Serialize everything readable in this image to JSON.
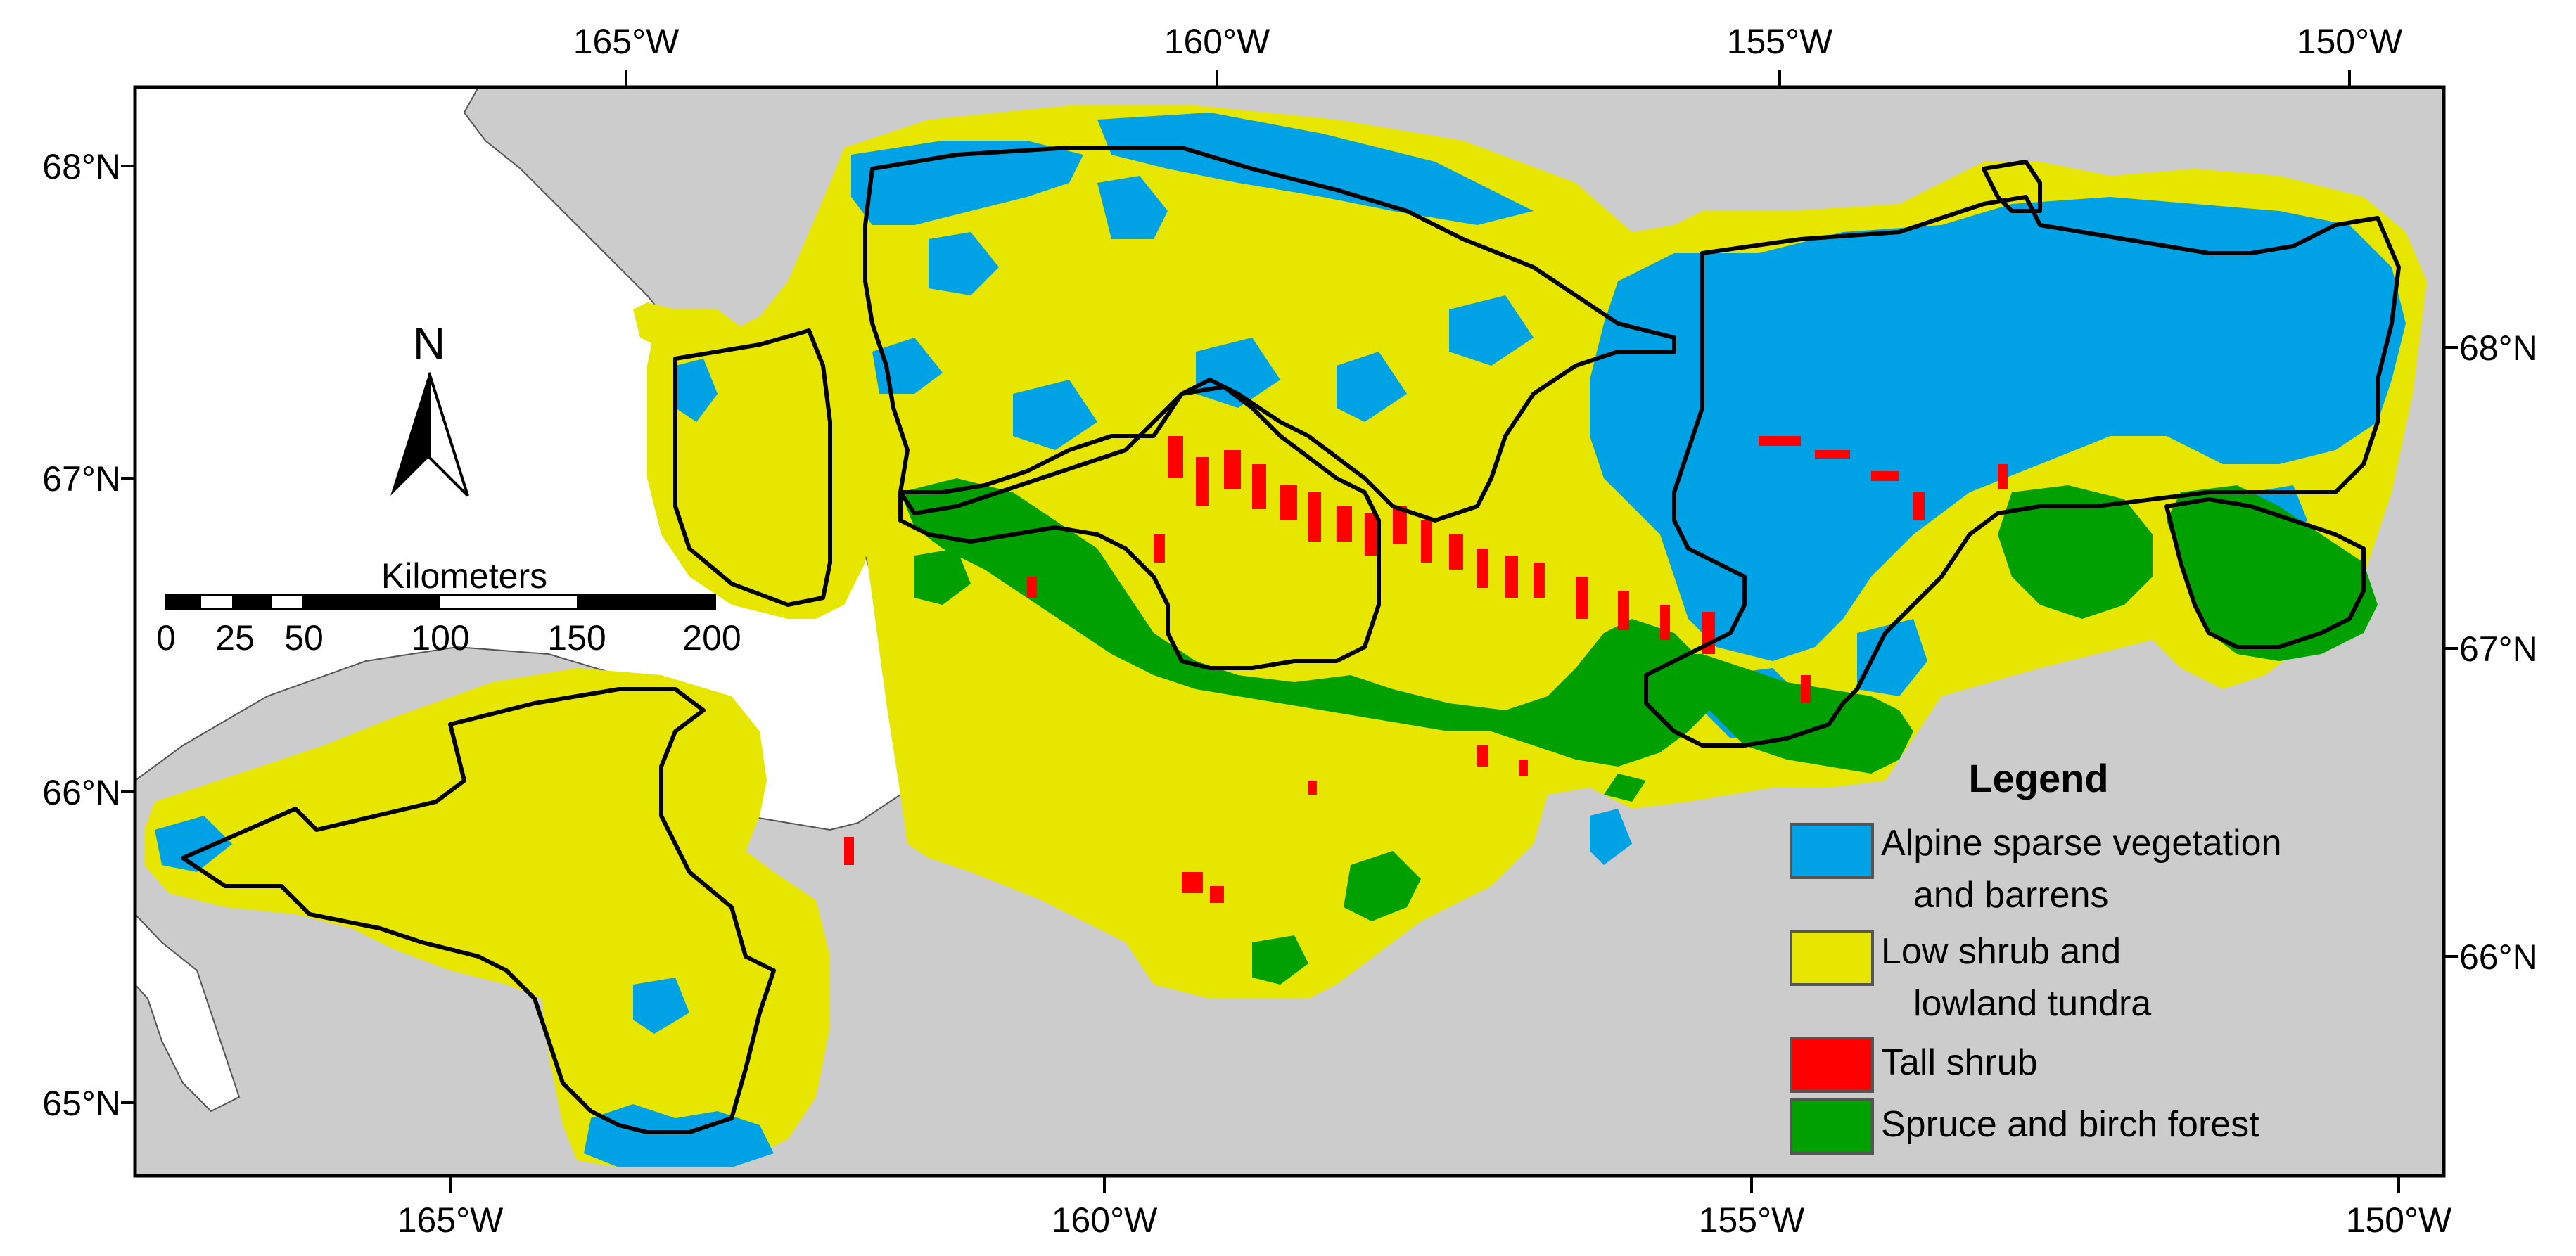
{
  "map": {
    "top_lon_labels": [
      "165°W",
      "160°W",
      "155°W",
      "150°W"
    ],
    "bottom_lon_labels": [
      "165°W",
      "160°W",
      "155°W",
      "150°W"
    ],
    "left_lat_labels": [
      "68°N",
      "67°N",
      "66°N",
      "65°N"
    ],
    "right_lat_labels": [
      "68°N",
      "67°N",
      "66°N"
    ]
  },
  "north_arrow": {
    "label": "N"
  },
  "scale_bar": {
    "title": "Kilometers",
    "ticks": [
      "0",
      "25",
      "50",
      "100",
      "150",
      "200"
    ]
  },
  "legend": {
    "title": "Legend",
    "items": [
      {
        "line1": "Alpine sparse vegetation",
        "line2": "and barrens",
        "color": "#00a2e6"
      },
      {
        "line1": "Low shrub and",
        "line2": "lowland tundra",
        "color": "#e6e600"
      },
      {
        "line1": "Tall shrub",
        "line2": "",
        "color": "#ff0000"
      },
      {
        "line1": "Spruce and birch forest",
        "line2": "",
        "color": "#00a000"
      }
    ]
  },
  "colors": {
    "land_outside": "#cccccc",
    "ocean": "#ffffff",
    "alpine": "#00a2e6",
    "low_shrub": "#e6e600",
    "tall_shrub": "#ff0000",
    "forest": "#00a000"
  }
}
